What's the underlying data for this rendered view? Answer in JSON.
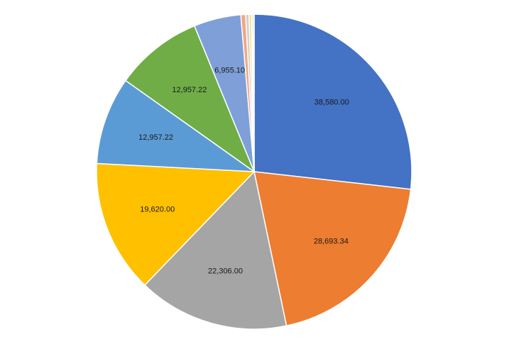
{
  "chart_data": {
    "type": "pie",
    "start_angle_deg": 0,
    "direction": "clockwise",
    "legend": "none",
    "slices": [
      {
        "value": 38580.0,
        "label": "38,580.00",
        "color": "#4472C4",
        "show_label": true
      },
      {
        "value": 28693.34,
        "label": "28,693.34",
        "color": "#ED7D31",
        "show_label": true
      },
      {
        "value": 22306.0,
        "label": "22,306.00",
        "color": "#A5A5A5",
        "show_label": true
      },
      {
        "value": 19620.0,
        "label": "19,620.00",
        "color": "#FFC000",
        "show_label": true
      },
      {
        "value": 12957.22,
        "label": "12,957.22",
        "color": "#5B9BD5",
        "show_label": true
      },
      {
        "value": 12957.22,
        "label": "12,957.22",
        "color": "#70AD47",
        "show_label": true
      },
      {
        "value": 6955.1,
        "label": "6,955.10",
        "color": "#7F9FD8",
        "show_label": true
      },
      {
        "value": 700,
        "label": "",
        "color": "#F4A582",
        "show_label": false
      },
      {
        "value": 500,
        "label": "",
        "color": "#D0D0D0",
        "show_label": false
      },
      {
        "value": 350,
        "label": "",
        "color": "#FFD966",
        "show_label": false
      },
      {
        "value": 200,
        "label": "",
        "color": "#9DC3E6",
        "show_label": false
      },
      {
        "value": 200,
        "label": "",
        "color": "#A9D18E",
        "show_label": false
      }
    ]
  }
}
